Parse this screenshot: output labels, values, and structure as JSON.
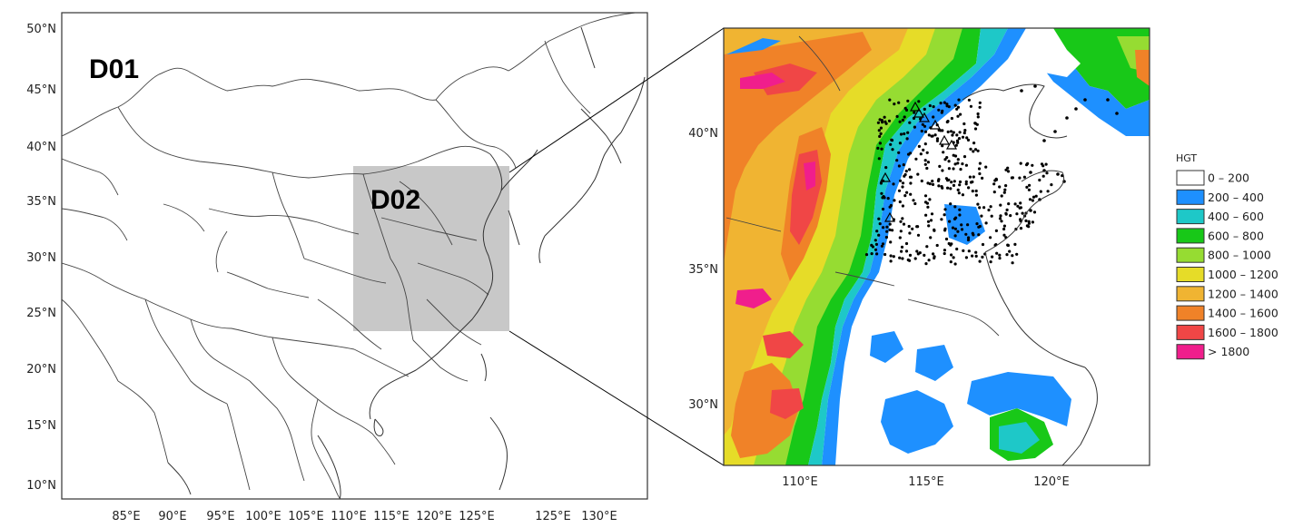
{
  "left_map": {
    "domain_label": "D01",
    "lat_labels": [
      "50°N",
      "45°N",
      "40°N",
      "35°N",
      "30°N",
      "25°N",
      "20°N",
      "15°N",
      "10°N"
    ],
    "lon_labels": [
      "85°E",
      "90°E",
      "95°E",
      "100°E",
      "105°E",
      "110°E",
      "115°E",
      "120°E",
      "125°E",
      "130°E"
    ],
    "inner_domain_label": "D02"
  },
  "right_map": {
    "lat_labels": [
      "40°N",
      "35°N",
      "30°N"
    ],
    "lon_labels": [
      "110°E",
      "115°E",
      "120°E"
    ]
  },
  "legend": {
    "title": "HGT",
    "items": [
      {
        "label": "0 – 200",
        "color": "#ffffff"
      },
      {
        "label": "200 – 400",
        "color": "#1e90ff"
      },
      {
        "label": "400 – 600",
        "color": "#1ec8c8"
      },
      {
        "label": "600 – 800",
        "color": "#18c818"
      },
      {
        "label": "800 – 1000",
        "color": "#96dc32"
      },
      {
        "label": "1000 – 1200",
        "color": "#e6dc28"
      },
      {
        "label": "1200 – 1400",
        "color": "#f0b432"
      },
      {
        "label": "1400 – 1600",
        "color": "#f08228"
      },
      {
        "label": "1600 – 1800",
        "color": "#f04646"
      },
      {
        "label": "> 1800",
        "color": "#f01e8c"
      }
    ]
  }
}
